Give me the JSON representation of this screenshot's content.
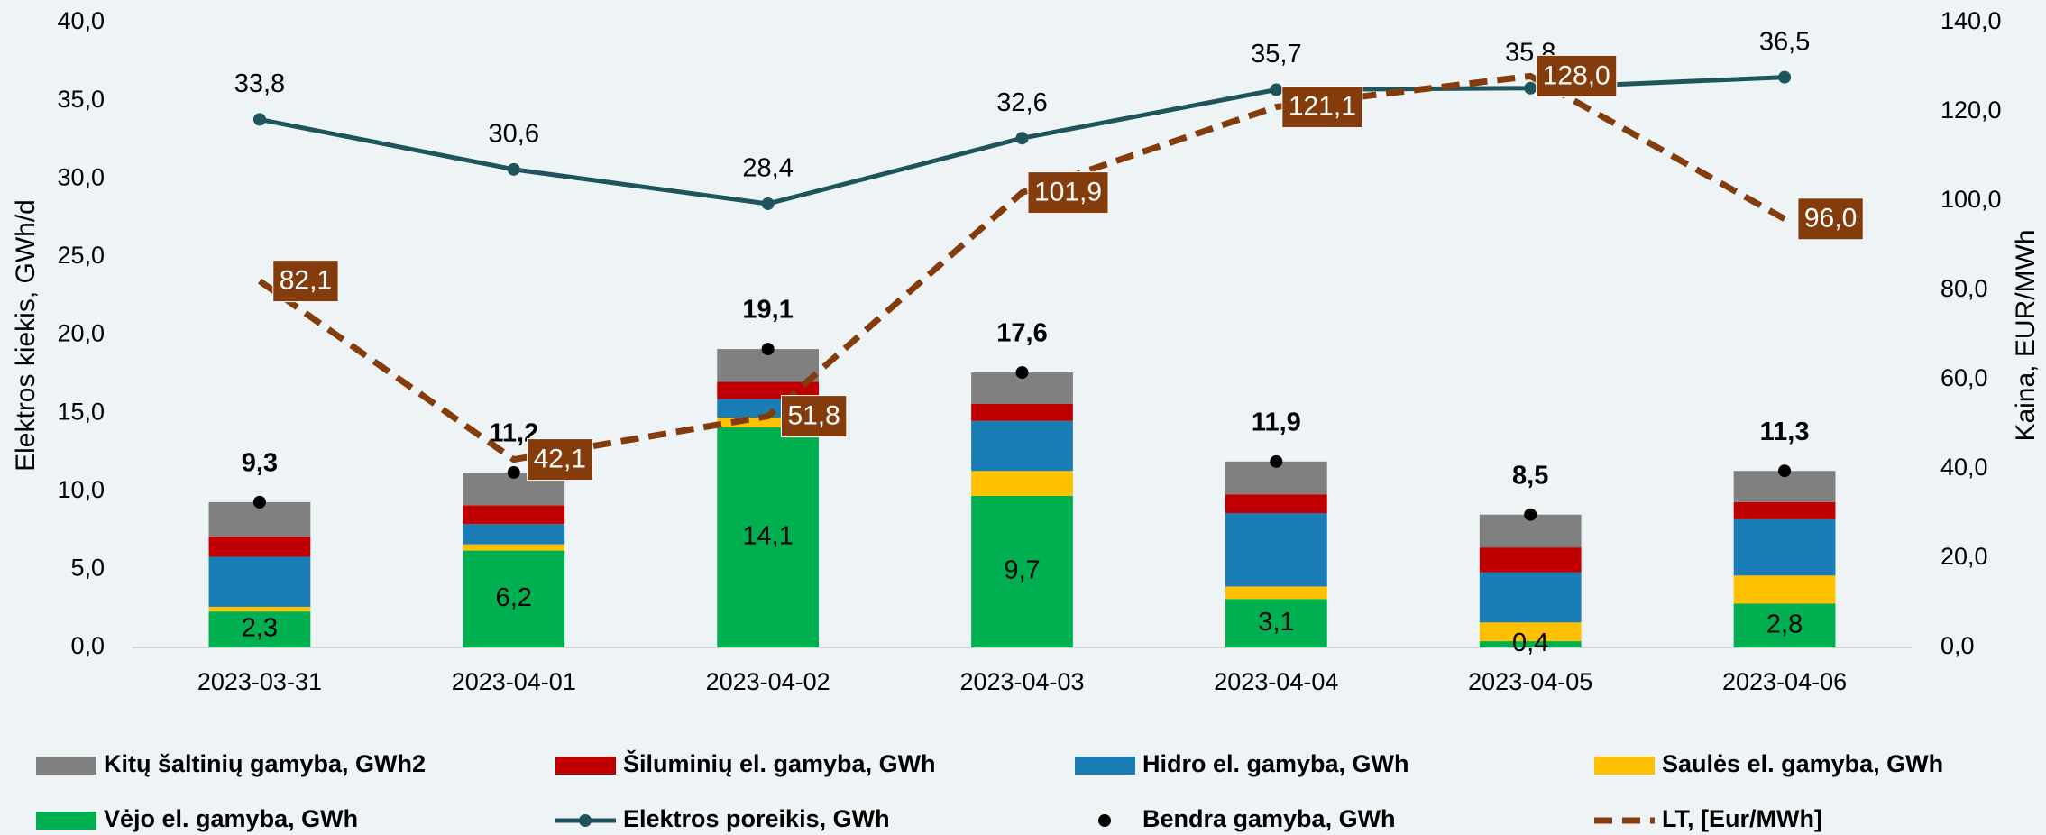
{
  "chart_data": {
    "type": "bar",
    "ylabel": "Elektros kiekis, GWh/d",
    "y2label": "Kaina, EUR/MWh",
    "categories": [
      "2023-03-31",
      "2023-04-01",
      "2023-04-02",
      "2023-04-03",
      "2023-04-04",
      "2023-04-05",
      "2023-04-06"
    ],
    "ylim": [
      0,
      40
    ],
    "yticks": [
      {
        "value": 0,
        "label": "0,0"
      },
      {
        "value": 5,
        "label": "5,0"
      },
      {
        "value": 10,
        "label": "10,0"
      },
      {
        "value": 15,
        "label": "15,0"
      },
      {
        "value": 20,
        "label": "20,0"
      },
      {
        "value": 25,
        "label": "25,0"
      },
      {
        "value": 30,
        "label": "30,0"
      },
      {
        "value": 35,
        "label": "35,0"
      },
      {
        "value": 40,
        "label": "40,0"
      }
    ],
    "y2lim": [
      0,
      140
    ],
    "y2ticks": [
      {
        "value": 0,
        "label": "0,0"
      },
      {
        "value": 20,
        "label": "20,0"
      },
      {
        "value": 40,
        "label": "40,0"
      },
      {
        "value": 60,
        "label": "60,0"
      },
      {
        "value": 80,
        "label": "80,0"
      },
      {
        "value": 100,
        "label": "100,0"
      },
      {
        "value": 120,
        "label": "120,0"
      },
      {
        "value": 140,
        "label": "140,0"
      }
    ],
    "stacked": true,
    "series": [
      {
        "name": "Kitų šaltinių gamyba, GWh2",
        "type": "bar",
        "color": "#808080",
        "values": [
          2.2,
          2.1,
          2.1,
          2.0,
          2.1,
          2.1,
          2.0
        ]
      },
      {
        "name": "Šiluminių el. gamyba, GWh",
        "type": "bar",
        "color": "#c00000",
        "values": [
          1.3,
          1.2,
          1.1,
          1.1,
          1.2,
          1.6,
          1.1
        ]
      },
      {
        "name": "Hidro el. gamyba, GWh",
        "type": "bar",
        "color": "#1a7db5",
        "values": [
          3.2,
          1.3,
          1.2,
          3.2,
          4.7,
          3.2,
          3.6
        ]
      },
      {
        "name": "Saulės el. gamyba, GWh",
        "type": "bar",
        "color": "#ffc000",
        "values": [
          0.3,
          0.4,
          0.6,
          1.6,
          0.8,
          1.2,
          1.8
        ]
      },
      {
        "name": "Vėjo el. gamyba, GWh",
        "type": "bar",
        "color": "#00b050",
        "values": [
          2.3,
          6.2,
          14.1,
          9.7,
          3.1,
          0.4,
          2.8
        ],
        "value_labels": [
          "2,3",
          "6,2",
          "14,1",
          "9,7",
          "3,1",
          "0,4",
          "2,8"
        ]
      },
      {
        "name": "Elektros poreikis, GWh",
        "type": "line",
        "color": "#1e555c",
        "values": [
          33.8,
          30.6,
          28.4,
          32.6,
          35.7,
          35.8,
          36.5
        ],
        "value_labels": [
          "33,8",
          "30,6",
          "28,4",
          "32,6",
          "35,7",
          "35,8",
          "36,5"
        ]
      },
      {
        "name": "Bendra gamyba, GWh",
        "type": "scatter",
        "color": "#000000",
        "values": [
          9.3,
          11.2,
          19.1,
          17.6,
          11.9,
          8.5,
          11.3
        ],
        "value_labels": [
          "9,3",
          "11,2",
          "19,1",
          "17,6",
          "11,9",
          "8,5",
          "11,3"
        ]
      },
      {
        "name": "LT, [Eur/MWh]",
        "type": "dashed-line",
        "axis": "y2",
        "color": "#843c0c",
        "values": [
          82.1,
          42.1,
          51.8,
          101.9,
          121.1,
          128.0,
          96.0
        ],
        "value_labels": [
          "82,1",
          "42,1",
          "51,8",
          "101,9",
          "121,1",
          "128,0",
          "96,0"
        ]
      }
    ]
  }
}
